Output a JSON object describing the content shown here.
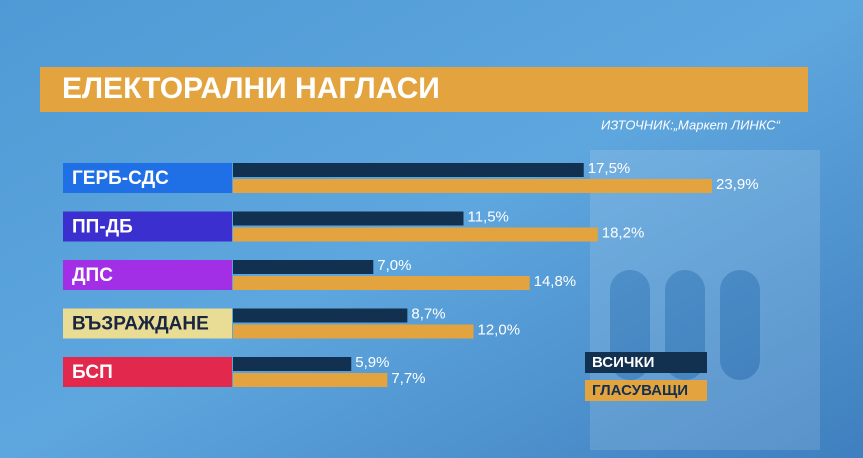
{
  "chart_data": {
    "type": "bar",
    "orientation": "horizontal",
    "title": "ЕЛЕКТОРАЛНИ НАГЛАСИ",
    "source": "ИЗТОЧНИК:„Маркет ЛИНКС“",
    "categories": [
      "ГЕРБ-СДС",
      "ПП-ДБ",
      "ДПС",
      "ВЪЗРАЖДАНЕ",
      "БСП"
    ],
    "category_colors": [
      "#1f6fe6",
      "#3b2fcf",
      "#a22fe6",
      "#e9dc95",
      "#e2284c"
    ],
    "category_text_colors": [
      "#ffffff",
      "#ffffff",
      "#ffffff",
      "#1a2540",
      "#ffffff"
    ],
    "series": [
      {
        "name": "ВСИЧКИ",
        "color": "#12304f",
        "values": [
          17.5,
          11.5,
          7.0,
          8.7,
          5.9
        ],
        "value_labels": [
          "17,5%",
          "11,5%",
          "7,0%",
          "8,7%",
          "5,9%"
        ]
      },
      {
        "name": "ГЛАСУВАЩИ",
        "color": "#e3a43f",
        "values": [
          23.9,
          18.2,
          14.8,
          12.0,
          7.7
        ],
        "value_labels": [
          "23,9%",
          "18,2%",
          "14,8%",
          "12,0%",
          "7,7%"
        ]
      }
    ],
    "legend": "bottom-right"
  }
}
